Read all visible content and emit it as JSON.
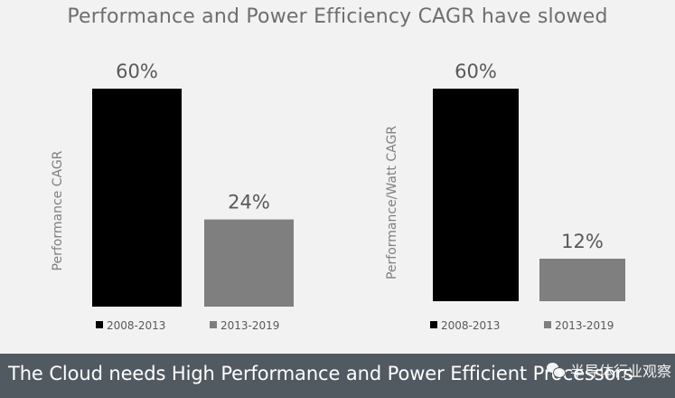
{
  "title": "Performance and Power Efficiency CAGR have slowed",
  "footer": {
    "text": "The Cloud needs High Performance and Power Efficient Processors",
    "watermark": "半导体行业观察",
    "watermark_icon": "wechat-icon"
  },
  "colors": {
    "background": "#f2f2f2",
    "bar_2008_2013": "#000000",
    "bar_2013_2019": "#7f7f7f",
    "footer_bg": "#505a60",
    "title_text": "#6e6e6e"
  },
  "chart_data": [
    {
      "type": "bar",
      "ylabel": "Performance CAGR",
      "categories": [
        "2008-2013",
        "2013-2019"
      ],
      "values": [
        60,
        24
      ],
      "value_labels": [
        "60%",
        "24%"
      ],
      "ylim": [
        0,
        60
      ],
      "grid": false,
      "legend_position": "bottom",
      "legend": [
        "2008-2013",
        "2013-2019"
      ]
    },
    {
      "type": "bar",
      "ylabel": "Performance/Watt CAGR",
      "categories": [
        "2008-2013",
        "2013-2019"
      ],
      "values": [
        60,
        12
      ],
      "value_labels": [
        "60%",
        "12%"
      ],
      "ylim": [
        0,
        60
      ],
      "grid": false,
      "legend_position": "bottom",
      "legend": [
        "2008-2013",
        "2013-2019"
      ]
    }
  ]
}
